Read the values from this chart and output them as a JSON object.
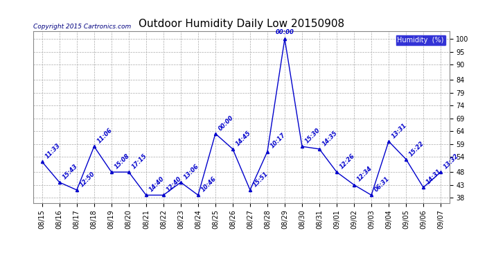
{
  "title": "Outdoor Humidity Daily Low 20150908",
  "copyright": "Copyright 2015 Cartronics.com",
  "legend_label": "Humidity  (%)",
  "x_labels": [
    "08/15",
    "08/16",
    "08/17",
    "08/18",
    "08/19",
    "08/20",
    "08/21",
    "08/22",
    "08/23",
    "08/24",
    "08/25",
    "08/26",
    "08/27",
    "08/28",
    "08/29",
    "08/30",
    "08/31",
    "09/01",
    "09/02",
    "09/03",
    "09/04",
    "09/05",
    "09/06",
    "09/07"
  ],
  "y_values": [
    52,
    44,
    41,
    58,
    48,
    48,
    39,
    39,
    44,
    39,
    63,
    57,
    41,
    56,
    100,
    58,
    57,
    48,
    43,
    39,
    60,
    53,
    42,
    48
  ],
  "point_labels": [
    "11:33",
    "15:43",
    "12:50",
    "11:06",
    "15:08",
    "17:15",
    "14:40",
    "12:40",
    "13:06",
    "10:46",
    "00:00",
    "14:45",
    "15:51",
    "10:17",
    "00:00",
    "15:30",
    "14:35",
    "12:26",
    "12:34",
    "06:31",
    "13:31",
    "15:22",
    "14:31",
    "13:32"
  ],
  "line_color": "#0000cc",
  "marker_color": "#000000",
  "background_color": "#ffffff",
  "grid_color": "#aaaaaa",
  "yticks": [
    38,
    43,
    48,
    54,
    59,
    64,
    69,
    74,
    79,
    84,
    90,
    95,
    100
  ],
  "ylim": [
    36,
    103
  ],
  "title_fontsize": 11,
  "label_fontsize": 7,
  "point_label_fontsize": 6,
  "legend_bg": "#0000cc",
  "legend_text_color": "#ffffff",
  "copyright_color": "#000080"
}
